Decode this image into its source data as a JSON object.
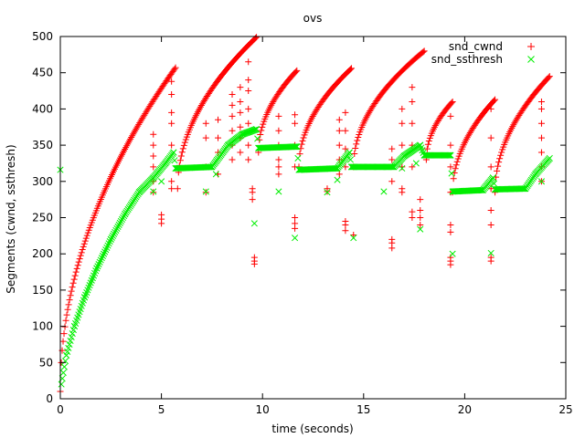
{
  "chart_data": {
    "type": "scatter",
    "title": "ovs",
    "xlabel": "time (seconds)",
    "ylabel": "Segments (cwnd, ssthresh)",
    "xlim": [
      0,
      25
    ],
    "ylim": [
      0,
      500
    ],
    "x_ticks": [
      "0",
      "5",
      "10",
      "15",
      "20",
      "25"
    ],
    "y_ticks": [
      "0",
      "50",
      "100",
      "150",
      "200",
      "250",
      "300",
      "350",
      "400",
      "450",
      "500"
    ],
    "grid": false,
    "legend_position": "top-right",
    "series": [
      {
        "name": "snd_cwnd",
        "marker": "plus",
        "color": "#ff0000",
        "growth_segments": [
          {
            "t_start": 0.0,
            "t_end": 5.7,
            "y_start": 10,
            "y_end": 457
          },
          {
            "t_start": 5.8,
            "t_end": 9.7,
            "y_start": 290,
            "y_end": 499
          },
          {
            "t_start": 9.8,
            "t_end": 11.7,
            "y_start": 340,
            "y_end": 453
          },
          {
            "t_start": 11.8,
            "t_end": 14.4,
            "y_start": 320,
            "y_end": 456
          },
          {
            "t_start": 14.5,
            "t_end": 18.0,
            "y_start": 320,
            "y_end": 480
          },
          {
            "t_start": 18.1,
            "t_end": 19.4,
            "y_start": 330,
            "y_end": 410
          },
          {
            "t_start": 19.4,
            "t_end": 21.5,
            "y_start": 285,
            "y_end": 413
          },
          {
            "t_start": 21.5,
            "t_end": 24.2,
            "y_start": 285,
            "y_end": 445
          }
        ],
        "burst_clusters": [
          {
            "x": 4.6,
            "y_values": [
              285,
              300,
              320,
              335,
              350,
              365
            ]
          },
          {
            "x": 5.0,
            "y_values": [
              242,
              248,
              254
            ]
          },
          {
            "x": 5.5,
            "y_values": [
              290,
              300,
              350,
              380,
              395,
              420,
              438
            ]
          },
          {
            "x": 7.2,
            "y_values": [
              285,
              320,
              360,
              380
            ]
          },
          {
            "x": 7.8,
            "y_values": [
              310,
              340,
              360,
              385
            ]
          },
          {
            "x": 8.5,
            "y_values": [
              330,
              350,
              370,
              390,
              405,
              420
            ]
          },
          {
            "x": 8.9,
            "y_values": [
              340,
              360,
              375,
              395,
              410,
              430
            ]
          },
          {
            "x": 9.3,
            "y_values": [
              330,
              350,
              380,
              400,
              425,
              440,
              465
            ]
          },
          {
            "x": 9.5,
            "y_values": [
              275,
              285,
              290
            ]
          },
          {
            "x": 9.6,
            "y_values": [
              186,
              190,
              195
            ]
          },
          {
            "x": 10.8,
            "y_values": [
              310,
              320,
              330,
              350,
              370,
              390
            ]
          },
          {
            "x": 11.6,
            "y_values": [
              235,
              242,
              250,
              320,
              350,
              380,
              392
            ]
          },
          {
            "x": 13.2,
            "y_values": [
              286,
              290
            ]
          },
          {
            "x": 13.8,
            "y_values": [
              310,
              330,
              350,
              370,
              385
            ]
          },
          {
            "x": 14.1,
            "y_values": [
              232,
              240,
              245,
              320,
              345,
              370,
              395
            ]
          },
          {
            "x": 14.5,
            "y_values": [
              226
            ]
          },
          {
            "x": 16.4,
            "y_values": [
              208,
              215,
              220,
              300,
              330,
              345
            ]
          },
          {
            "x": 16.9,
            "y_values": [
              285,
              290,
              320,
              350,
              380,
              400
            ]
          },
          {
            "x": 17.4,
            "y_values": [
              250,
              258,
              320,
              350,
              380,
              410,
              430
            ]
          },
          {
            "x": 17.8,
            "y_values": [
              240,
              250,
              260,
              275
            ]
          },
          {
            "x": 19.3,
            "y_values": [
              185,
              190,
              195,
              230,
              240,
              285,
              320,
              350,
              390
            ]
          },
          {
            "x": 21.3,
            "y_values": [
              190,
              195,
              240,
              260,
              290,
              320,
              360,
              400
            ]
          },
          {
            "x": 23.8,
            "y_values": [
              300,
              320,
              340,
              360,
              380,
              400,
              410
            ]
          }
        ]
      },
      {
        "name": "snd_ssthresh",
        "marker": "cross",
        "color": "#00ee00",
        "points_outline": [
          [
            0.0,
            316
          ],
          [
            0.05,
            20
          ],
          [
            0.3,
            60
          ],
          [
            0.7,
            100
          ],
          [
            1.2,
            140
          ],
          [
            1.8,
            180
          ],
          [
            2.5,
            220
          ],
          [
            3.2,
            255
          ],
          [
            3.9,
            285
          ],
          [
            4.6,
            305
          ],
          [
            5.2,
            325
          ],
          [
            5.6,
            340
          ],
          [
            5.7,
            318
          ],
          [
            7.5,
            320
          ],
          [
            8.3,
            350
          ],
          [
            9.0,
            365
          ],
          [
            9.7,
            372
          ],
          [
            9.8,
            346
          ],
          [
            11.7,
            348
          ],
          [
            11.8,
            316
          ],
          [
            13.7,
            318
          ],
          [
            14.3,
            340
          ],
          [
            14.4,
            320
          ],
          [
            16.5,
            320
          ],
          [
            17.0,
            335
          ],
          [
            17.8,
            350
          ],
          [
            18.0,
            336
          ],
          [
            19.3,
            336
          ],
          [
            19.4,
            286
          ],
          [
            20.9,
            288
          ],
          [
            21.4,
            305
          ],
          [
            21.5,
            289
          ],
          [
            23.0,
            290
          ],
          [
            23.5,
            310
          ],
          [
            24.2,
            332
          ]
        ],
        "outliers": [
          [
            4.6,
            286
          ],
          [
            5.0,
            300
          ],
          [
            7.2,
            286
          ],
          [
            7.7,
            310
          ],
          [
            9.6,
            242
          ],
          [
            10.8,
            286
          ],
          [
            11.6,
            222
          ],
          [
            13.2,
            285
          ],
          [
            13.7,
            302
          ],
          [
            14.5,
            222
          ],
          [
            16.0,
            286
          ],
          [
            16.9,
            318
          ],
          [
            17.6,
            325
          ],
          [
            17.8,
            234
          ],
          [
            19.4,
            200
          ],
          [
            21.3,
            201
          ],
          [
            23.8,
            300
          ]
        ]
      }
    ]
  }
}
